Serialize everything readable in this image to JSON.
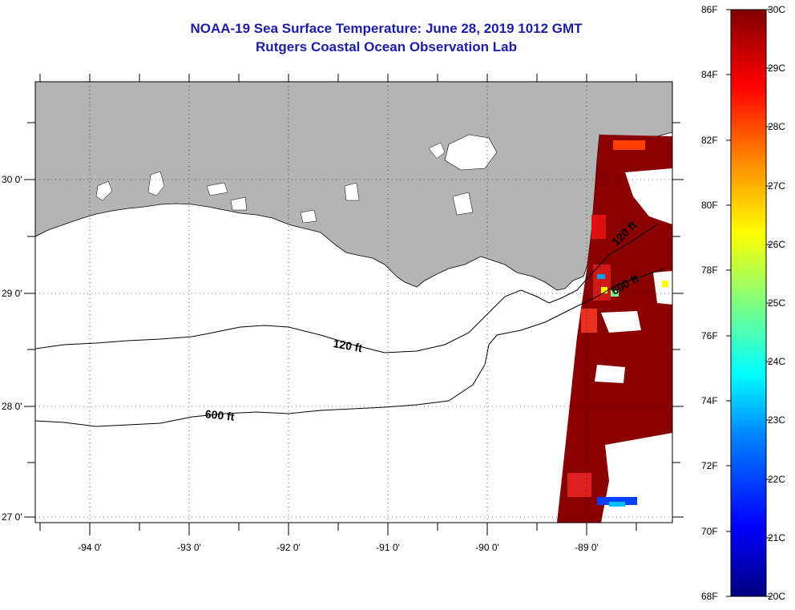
{
  "title": {
    "line1": "NOAA-19 Sea Surface Temperature:  June 28, 2019 1012 GMT",
    "line2": "Rutgers Coastal Ocean Observation Lab"
  },
  "map": {
    "longitude_labels": [
      "-94 0'",
      "-93 0'",
      "-92 0'",
      "-91 0'",
      "-90 0'",
      "-89 0'"
    ],
    "latitude_labels": [
      "30 0'",
      "29 0'",
      "28 0'",
      "27 0'"
    ],
    "contour_labels": [
      "120 ft",
      "600 ft",
      "120 ft",
      "600 ft"
    ],
    "colors": {
      "land": "#b4b4b4",
      "ocean": "#ffffff",
      "sst_dominant": "#8a0000",
      "title_text": "#1c1ca8"
    }
  },
  "colorbar": {
    "fahrenheit_labels": [
      "86F",
      "84F",
      "82F",
      "80F",
      "78F",
      "76F",
      "74F",
      "72F",
      "70F",
      "68F"
    ],
    "celsius_labels": [
      "30C",
      "29C",
      "28C",
      "27C",
      "26C",
      "25C",
      "24C",
      "23C",
      "22C",
      "21C",
      "20C"
    ],
    "colors": [
      "#000080",
      "#0000ff",
      "#0080ff",
      "#00ffff",
      "#80ff80",
      "#ffff00",
      "#ff8000",
      "#ff0000",
      "#800000"
    ]
  }
}
